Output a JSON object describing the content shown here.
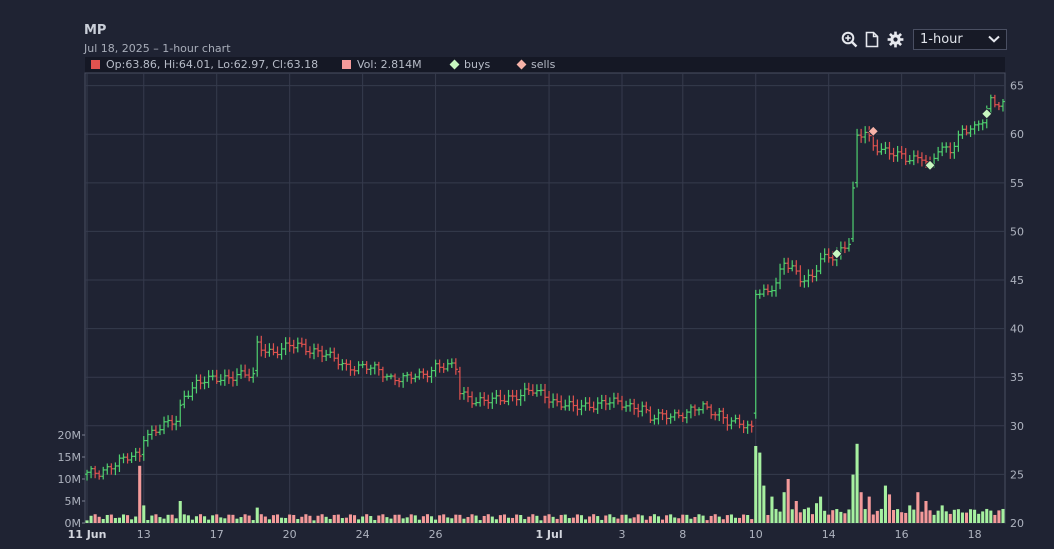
{
  "header": {
    "symbol": "MP",
    "subtitle": "Jul 18, 2025 – 1-hour chart"
  },
  "toolbar": {
    "icons": [
      "zoom-in-icon",
      "document-icon",
      "gear-icon"
    ],
    "period_selected": "1-hour"
  },
  "legend": {
    "ohlc": "Op:63.86, Hi:64.01, Lo:62.97, Cl:63.18",
    "volume": "Vol: 2.814M",
    "buys": "buys",
    "sells": "sells"
  },
  "colors": {
    "background": "#1f2333",
    "up": "#4fd06f",
    "down": "#e0524f",
    "vol_up": "#a6f0a0",
    "vol_down": "#f49a9a",
    "grid": "#363b4d",
    "buy_marker": "#c8f7c0",
    "sell_marker": "#f6b2a8"
  },
  "chart_data": {
    "type": "candlestick",
    "title": "MP",
    "price_axis": {
      "ticks": [
        20,
        25,
        30,
        35,
        40,
        45,
        50,
        55,
        60,
        65
      ],
      "range": [
        20,
        66.3
      ]
    },
    "volume_axis": {
      "ticks": [
        "0M",
        "5M",
        "10M",
        "15M",
        "20M"
      ],
      "range_millions": [
        0,
        20
      ]
    },
    "x_tick_labels": [
      {
        "label": "11 Jun",
        "bar": 0,
        "bold": true
      },
      {
        "label": "13",
        "bar": 14
      },
      {
        "label": "17",
        "bar": 32
      },
      {
        "label": "20",
        "bar": 50
      },
      {
        "label": "24",
        "bar": 68
      },
      {
        "label": "26",
        "bar": 86
      },
      {
        "label": "1 Jul",
        "bar": 114,
        "bold": true
      },
      {
        "label": "3",
        "bar": 132
      },
      {
        "label": "8",
        "bar": 147
      },
      {
        "label": "10",
        "bar": 165
      },
      {
        "label": "14",
        "bar": 183
      },
      {
        "label": "16",
        "bar": 201
      },
      {
        "label": "18",
        "bar": 219
      }
    ],
    "bar_count": 227,
    "anchors": [
      [
        0,
        25.0
      ],
      [
        3,
        25.2
      ],
      [
        6,
        26.0
      ],
      [
        10,
        26.6
      ],
      [
        13,
        27.0
      ],
      [
        14,
        29.0
      ],
      [
        17,
        29.6
      ],
      [
        22,
        30.5
      ],
      [
        24,
        33.2
      ],
      [
        27,
        34.4
      ],
      [
        32,
        34.8
      ],
      [
        37,
        35.3
      ],
      [
        41,
        35.0
      ],
      [
        42,
        38.3
      ],
      [
        46,
        37.6
      ],
      [
        50,
        38.1
      ],
      [
        52,
        38.3
      ],
      [
        56,
        37.8
      ],
      [
        60,
        37.0
      ],
      [
        64,
        36.2
      ],
      [
        68,
        36.0
      ],
      [
        72,
        35.7
      ],
      [
        75,
        35.0
      ],
      [
        79,
        34.8
      ],
      [
        83,
        35.3
      ],
      [
        86,
        36.2
      ],
      [
        91,
        35.9
      ],
      [
        92,
        33.5
      ],
      [
        96,
        32.6
      ],
      [
        100,
        32.5
      ],
      [
        104,
        33.0
      ],
      [
        110,
        33.5
      ],
      [
        113,
        33.2
      ],
      [
        116,
        32.4
      ],
      [
        120,
        31.8
      ],
      [
        124,
        32.2
      ],
      [
        128,
        32.4
      ],
      [
        133,
        32.2
      ],
      [
        137,
        31.9
      ],
      [
        139,
        30.6
      ],
      [
        143,
        31.2
      ],
      [
        148,
        31.2
      ],
      [
        150,
        31.6
      ],
      [
        152,
        32.0
      ],
      [
        156,
        31.3
      ],
      [
        158,
        30.3
      ],
      [
        162,
        30.1
      ],
      [
        164,
        29.9
      ],
      [
        165,
        44.0
      ],
      [
        168,
        43.6
      ],
      [
        170,
        44.5
      ],
      [
        172,
        46.8
      ],
      [
        174,
        46.5
      ],
      [
        176,
        45.2
      ],
      [
        179,
        45.0
      ],
      [
        181,
        47.1
      ],
      [
        185,
        47.8
      ],
      [
        188,
        48.8
      ],
      [
        189,
        54.0
      ],
      [
        190,
        59.5
      ],
      [
        192,
        60.3
      ],
      [
        194,
        59.0
      ],
      [
        198,
        58.0
      ],
      [
        202,
        57.5
      ],
      [
        206,
        57.8
      ],
      [
        208,
        56.5
      ],
      [
        210,
        58.3
      ],
      [
        213,
        58.5
      ],
      [
        216,
        60.5
      ],
      [
        219,
        60.4
      ],
      [
        221,
        61.4
      ],
      [
        223,
        63.6
      ],
      [
        226,
        63.2
      ]
    ],
    "volume_spikes": [
      {
        "bar": 13,
        "millions": 13.0
      },
      {
        "bar": 14,
        "millions": 4.0
      },
      {
        "bar": 23,
        "millions": 5.0
      },
      {
        "bar": 42,
        "millions": 3.5
      },
      {
        "bar": 165,
        "millions": 17.5
      },
      {
        "bar": 166,
        "millions": 16.0
      },
      {
        "bar": 167,
        "millions": 8.5
      },
      {
        "bar": 169,
        "millions": 6.0
      },
      {
        "bar": 172,
        "millions": 7.0
      },
      {
        "bar": 173,
        "millions": 10.0
      },
      {
        "bar": 175,
        "millions": 5.0
      },
      {
        "bar": 178,
        "millions": 3.5
      },
      {
        "bar": 180,
        "millions": 4.5
      },
      {
        "bar": 181,
        "millions": 6.0
      },
      {
        "bar": 189,
        "millions": 11.0
      },
      {
        "bar": 190,
        "millions": 18.0
      },
      {
        "bar": 191,
        "millions": 7.0
      },
      {
        "bar": 193,
        "millions": 6.0
      },
      {
        "bar": 197,
        "millions": 8.5
      },
      {
        "bar": 198,
        "millions": 6.5
      },
      {
        "bar": 203,
        "millions": 4.0
      },
      {
        "bar": 205,
        "millions": 7.0
      },
      {
        "bar": 207,
        "millions": 5.0
      },
      {
        "bar": 211,
        "millions": 4.0
      }
    ],
    "buys": [
      {
        "bar": 185,
        "price": 47.7
      },
      {
        "bar": 208,
        "price": 56.8
      },
      {
        "bar": 222,
        "price": 62.1
      }
    ],
    "sells": [
      {
        "bar": 194,
        "price": 60.3
      }
    ]
  }
}
